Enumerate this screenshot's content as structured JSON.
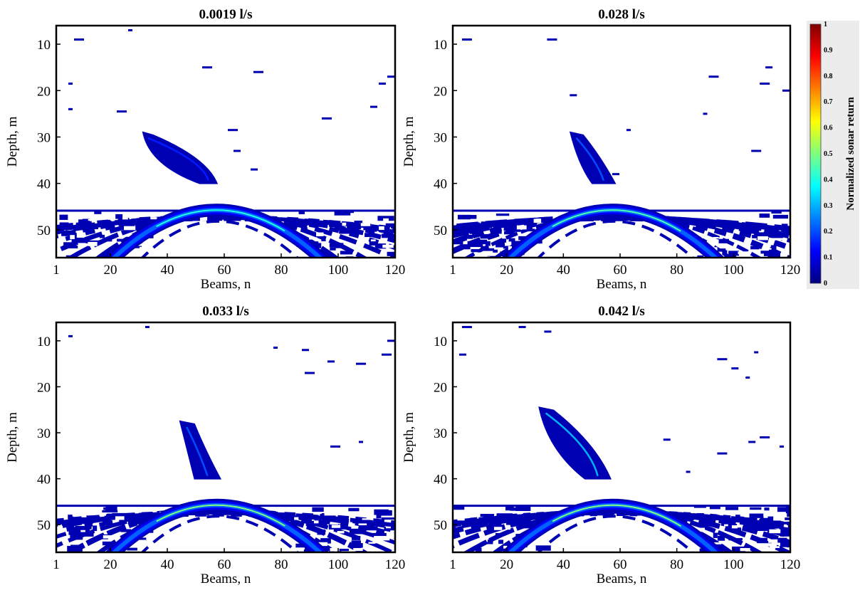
{
  "chart_data": [
    {
      "type": "heatmap",
      "title": "0.0019 l/s",
      "xlabel": "Beams, n",
      "ylabel": "Depth, m",
      "xlim": [
        1,
        120
      ],
      "ylim": [
        56,
        6
      ],
      "xticks": [
        "1",
        "20",
        "40",
        "60",
        "80",
        "100",
        "120"
      ],
      "yticks": [
        "10",
        "20",
        "30",
        "40",
        "50"
      ],
      "bubble_plume": {
        "top": [
          32,
          29
        ],
        "bottom": [
          55,
          40
        ],
        "width_beams": 6,
        "intensity": 0.1
      },
      "seabed_arc": {
        "apex": [
          57,
          45.5
        ],
        "left_base": [
          20,
          56
        ],
        "right_base": [
          95,
          56
        ],
        "peak_intensity": 0.4
      },
      "seabed_line_depth": 45.8,
      "noise_speckles": [
        [
          8,
          9
        ],
        [
          27,
          7
        ],
        [
          6,
          18.5
        ],
        [
          6,
          24
        ],
        [
          23,
          24.5
        ],
        [
          53,
          15
        ],
        [
          71,
          16
        ],
        [
          62,
          28.5
        ],
        [
          64,
          33
        ],
        [
          70,
          37
        ],
        [
          95,
          26
        ],
        [
          118,
          17
        ],
        [
          115,
          18.5
        ],
        [
          112,
          23.5
        ]
      ]
    },
    {
      "type": "heatmap",
      "title": "0.028 l/s",
      "xlabel": "Beams, n",
      "ylabel": "Depth, m",
      "xlim": [
        1,
        120
      ],
      "ylim": [
        56,
        6
      ],
      "xticks": [
        "1",
        "20",
        "40",
        "60",
        "80",
        "100",
        "120"
      ],
      "yticks": [
        "10",
        "20",
        "30",
        "40",
        "50"
      ],
      "bubble_plume": {
        "top": [
          43,
          29
        ],
        "bottom": [
          55,
          40
        ],
        "width_beams": 8,
        "intensity": 0.15
      },
      "seabed_arc": {
        "apex": [
          57,
          45.5
        ],
        "left_base": [
          20,
          56
        ],
        "right_base": [
          95,
          56
        ],
        "peak_intensity": 0.45
      },
      "seabed_line_depth": 45.8,
      "noise_speckles": [
        [
          5,
          9
        ],
        [
          35,
          9
        ],
        [
          43,
          21
        ],
        [
          63,
          28.5
        ],
        [
          58,
          38
        ],
        [
          92,
          17
        ],
        [
          90,
          25
        ],
        [
          107,
          33
        ],
        [
          112,
          15
        ],
        [
          110,
          18.5
        ],
        [
          118,
          20
        ]
      ]
    },
    {
      "type": "heatmap",
      "title": "0.033 l/s",
      "xlabel": "Beams, n",
      "ylabel": "Depth, m",
      "xlim": [
        1,
        120
      ],
      "ylim": [
        56,
        6
      ],
      "xticks": [
        "1",
        "20",
        "40",
        "60",
        "80",
        "100",
        "120"
      ],
      "yticks": [
        "10",
        "20",
        "30",
        "40",
        "50"
      ],
      "bubble_plume": {
        "top": [
          45,
          27.5
        ],
        "bottom": [
          55,
          40
        ],
        "width_beams": 9,
        "intensity": 0.15
      },
      "seabed_arc": {
        "apex": [
          57,
          45.5
        ],
        "left_base": [
          20,
          56
        ],
        "right_base": [
          95,
          56
        ],
        "peak_intensity": 0.5
      },
      "seabed_line_depth": 45.8,
      "noise_speckles": [
        [
          6,
          9
        ],
        [
          33,
          7
        ],
        [
          78,
          11.5
        ],
        [
          88,
          12
        ],
        [
          89,
          17
        ],
        [
          97,
          14.5
        ],
        [
          107,
          15
        ],
        [
          98,
          33
        ],
        [
          108,
          32
        ],
        [
          118,
          10
        ],
        [
          116,
          13
        ]
      ]
    },
    {
      "type": "heatmap",
      "title": "0.042 l/s",
      "xlabel": "Beams, n",
      "ylabel": "Depth, m",
      "xlim": [
        1,
        120
      ],
      "ylim": [
        56,
        6
      ],
      "xticks": [
        "1",
        "20",
        "40",
        "60",
        "80",
        "100",
        "120"
      ],
      "yticks": [
        "10",
        "20",
        "30",
        "40",
        "50"
      ],
      "bubble_plume": {
        "top": [
          32,
          24.5
        ],
        "bottom": [
          53,
          40
        ],
        "width_beams": 9,
        "intensity": 0.25
      },
      "seabed_arc": {
        "apex": [
          57,
          45.5
        ],
        "left_base": [
          20,
          56
        ],
        "right_base": [
          95,
          56
        ],
        "peak_intensity": 0.5
      },
      "seabed_line_depth": 45.8,
      "noise_speckles": [
        [
          5,
          7
        ],
        [
          25,
          7
        ],
        [
          34,
          8
        ],
        [
          4,
          13
        ],
        [
          95,
          14
        ],
        [
          100,
          16
        ],
        [
          108,
          12.5
        ],
        [
          105,
          18
        ],
        [
          76,
          31.5
        ],
        [
          95,
          34.5
        ],
        [
          106,
          32
        ],
        [
          110,
          31
        ],
        [
          117,
          33
        ],
        [
          84,
          38.5
        ]
      ]
    }
  ],
  "colorbar": {
    "label": "Normalized sonar return",
    "ticks": [
      "0",
      "0.1",
      "0.2",
      "0.3",
      "0.4",
      "0.5",
      "0.6",
      "0.7",
      "0.8",
      "0.9",
      "1"
    ],
    "colors": [
      "#00007f",
      "#0000ff",
      "#007fff",
      "#00ffff",
      "#7fff7f",
      "#ffff00",
      "#ff7f00",
      "#ff0000",
      "#7f0000"
    ]
  }
}
